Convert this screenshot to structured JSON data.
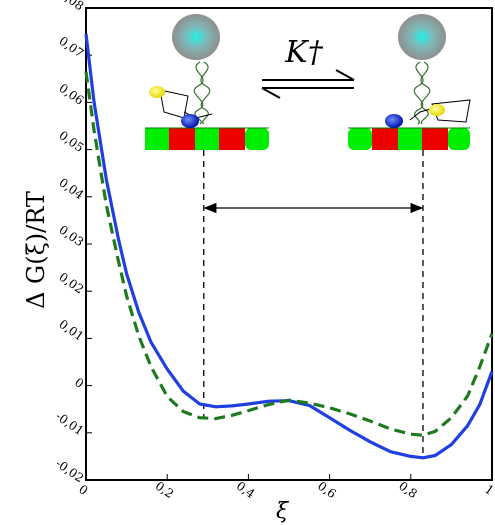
{
  "chart_data": {
    "type": "line",
    "xlabel": "ξ",
    "ylabel": "Δ G(ξ)/RT",
    "xlim": [
      0,
      1
    ],
    "ylim": [
      -0.02,
      0.08
    ],
    "x_ticks": [
      "0",
      "0,2",
      "0,4",
      "0,6",
      "0,8",
      "1"
    ],
    "y_ticks": [
      "-0,02",
      "-0,01",
      "0",
      "0,01",
      "0,02",
      "0,03",
      "0,04",
      "0,05",
      "0,06",
      "0,07",
      "0,08"
    ],
    "annotation": "K†",
    "series": [
      {
        "style": "solid",
        "color": "#1f3fe0",
        "x": [
          0,
          0.02,
          0.05,
          0.08,
          0.1,
          0.13,
          0.16,
          0.2,
          0.24,
          0.28,
          0.32,
          0.36,
          0.4,
          0.45,
          0.5,
          0.55,
          0.6,
          0.65,
          0.7,
          0.75,
          0.8,
          0.83,
          0.86,
          0.9,
          0.94,
          0.97,
          1.0
        ],
        "y": [
          0.0745,
          0.06,
          0.0437,
          0.031,
          0.0237,
          0.0155,
          0.0092,
          0.0035,
          -0.0012,
          -0.0039,
          -0.0045,
          -0.0043,
          -0.0039,
          -0.0033,
          -0.0032,
          -0.0042,
          -0.0068,
          -0.0095,
          -0.0119,
          -0.014,
          -0.015,
          -0.0153,
          -0.0148,
          -0.0125,
          -0.0085,
          -0.004,
          0.003
        ]
      },
      {
        "style": "dashed",
        "color": "#1f7a1f",
        "x": [
          0,
          0.02,
          0.05,
          0.08,
          0.1,
          0.13,
          0.16,
          0.2,
          0.24,
          0.28,
          0.32,
          0.36,
          0.4,
          0.45,
          0.5,
          0.55,
          0.6,
          0.65,
          0.7,
          0.75,
          0.8,
          0.83,
          0.86,
          0.9,
          0.94,
          0.97,
          1.0
        ],
        "y": [
          0.0665,
          0.054,
          0.0383,
          0.0263,
          0.019,
          0.0105,
          0.004,
          -0.0023,
          -0.0055,
          -0.0068,
          -0.007,
          -0.0063,
          -0.0053,
          -0.004,
          -0.0031,
          -0.0037,
          -0.0047,
          -0.006,
          -0.0075,
          -0.0092,
          -0.0103,
          -0.0105,
          -0.0097,
          -0.0068,
          -0.0022,
          0.004,
          0.011
        ]
      }
    ],
    "guides": [
      0.29,
      0.83
    ]
  }
}
